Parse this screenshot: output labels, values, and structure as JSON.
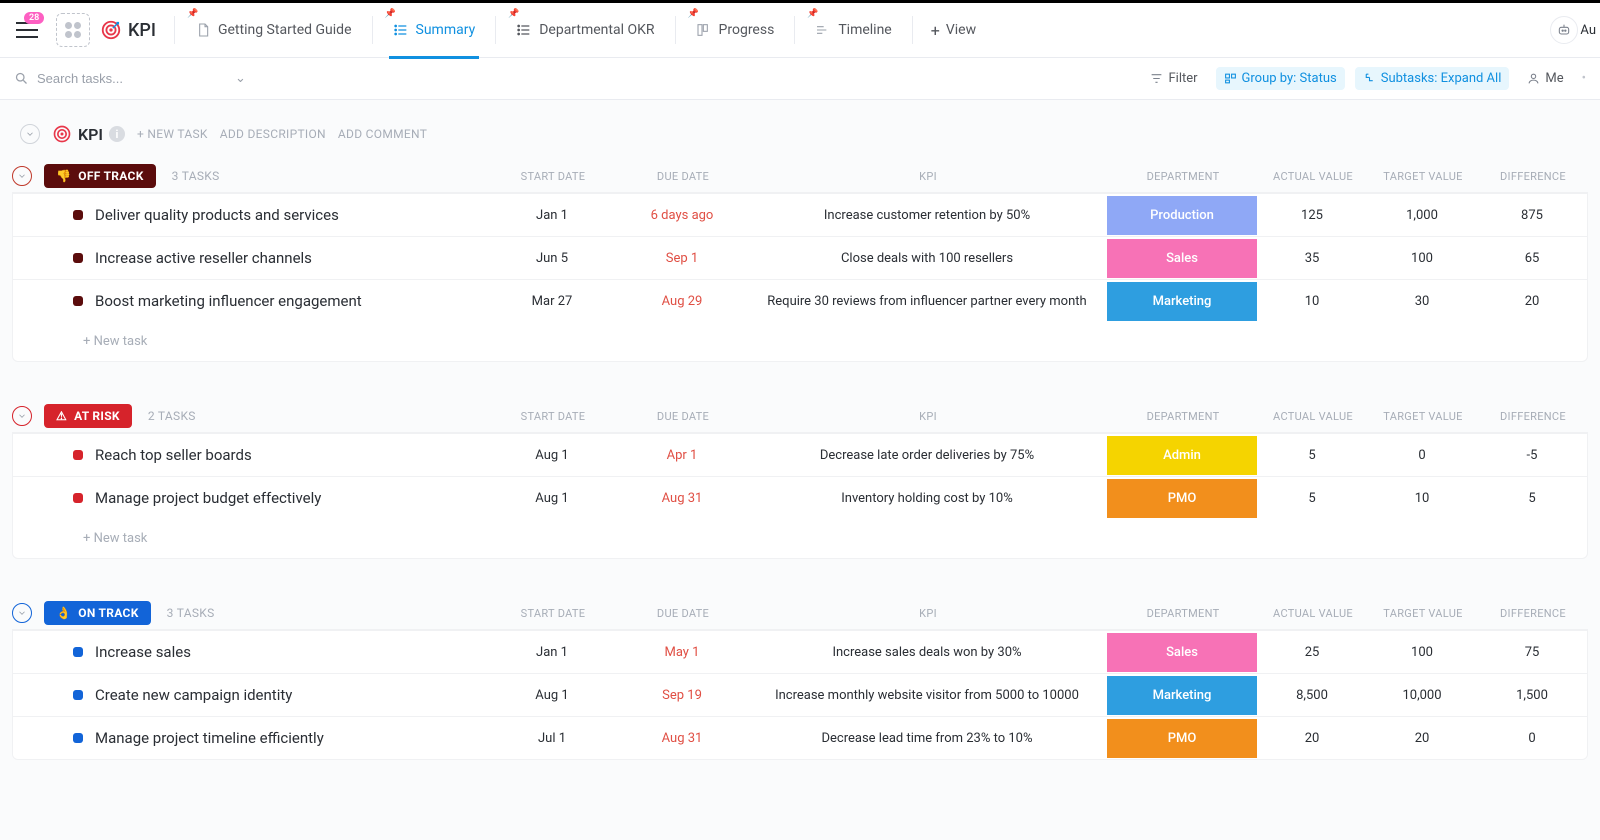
{
  "notif_count": "28",
  "page_title": "KPI",
  "nav": [
    {
      "label": "Getting Started Guide",
      "icon": "doc"
    },
    {
      "label": "Summary",
      "icon": "list",
      "active": true
    },
    {
      "label": "Departmental OKR",
      "icon": "list"
    },
    {
      "label": "Progress",
      "icon": "board"
    },
    {
      "label": "Timeline",
      "icon": "timeline"
    }
  ],
  "add_view_label": "View",
  "au_label": "Au",
  "search_placeholder": "Search tasks...",
  "toolbar": {
    "filter": "Filter",
    "group_by": "Group by: Status",
    "subtasks": "Subtasks: Expand All",
    "me": "Me"
  },
  "section": {
    "title": "KPI",
    "new_task": "+ NEW TASK",
    "add_desc": "ADD DESCRIPTION",
    "add_comment": "ADD COMMENT"
  },
  "column_labels": {
    "start": "START DATE",
    "due": "DUE DATE",
    "kpi": "KPI",
    "dept": "DEPARTMENT",
    "actual": "ACTUAL VALUE",
    "target": "TARGET VALUE",
    "diff": "DIFFERENCE"
  },
  "new_task_label": "+ New task",
  "dept_colors": {
    "Production": "#8fa8f6",
    "Sales": "#f772b6",
    "Marketing": "#2e9ee0",
    "Admin": "#f5d400",
    "PMO": "#f28f1c"
  },
  "groups": [
    {
      "name": "OFF TRACK",
      "icon": "👎",
      "chip_bg": "#5b0c0c",
      "collapse_color": "#c0392b",
      "count": "3 TASKS",
      "dot": "#5b0c0c",
      "rows": [
        {
          "name": "Deliver quality products and services",
          "start": "Jan 1",
          "due": "6 days ago",
          "kpi": "Increase customer retention by 50%",
          "dept": "Production",
          "actual": "125",
          "target": "1,000",
          "diff": "875"
        },
        {
          "name": "Increase active reseller channels",
          "start": "Jun 5",
          "due": "Sep 1",
          "kpi": "Close deals with 100 resellers",
          "dept": "Sales",
          "actual": "35",
          "target": "100",
          "diff": "65"
        },
        {
          "name": "Boost marketing influencer engagement",
          "start": "Mar 27",
          "due": "Aug 29",
          "kpi": "Require 30 reviews from influencer partner every month",
          "dept": "Marketing",
          "actual": "10",
          "target": "30",
          "diff": "20"
        }
      ]
    },
    {
      "name": "AT RISK",
      "icon": "⚠",
      "chip_bg": "#d6232b",
      "collapse_color": "#d6232b",
      "count": "2 TASKS",
      "dot": "#d6232b",
      "rows": [
        {
          "name": "Reach top seller boards",
          "start": "Aug 1",
          "due": "Apr 1",
          "kpi": "Decrease late order deliveries by 75%",
          "dept": "Admin",
          "actual": "5",
          "target": "0",
          "diff": "-5"
        },
        {
          "name": "Manage project budget effectively",
          "start": "Aug 1",
          "due": "Aug 31",
          "kpi": "Inventory holding cost by 10%",
          "dept": "PMO",
          "actual": "5",
          "target": "10",
          "diff": "5"
        }
      ]
    },
    {
      "name": "ON TRACK",
      "icon": "👌",
      "chip_bg": "#1264d8",
      "collapse_color": "#1264d8",
      "count": "3 TASKS",
      "dot": "#1264d8",
      "rows": [
        {
          "name": "Increase sales",
          "start": "Jan 1",
          "due": "May 1",
          "kpi": "Increase sales deals won by 30%",
          "dept": "Sales",
          "actual": "25",
          "target": "100",
          "diff": "75"
        },
        {
          "name": "Create new campaign identity",
          "start": "Aug 1",
          "due": "Sep 19",
          "kpi": "Increase monthly website visitor from 5000 to 10000",
          "dept": "Marketing",
          "actual": "8,500",
          "target": "10,000",
          "diff": "1,500"
        },
        {
          "name": "Manage project timeline efficiently",
          "start": "Jul 1",
          "due": "Aug 31",
          "kpi": "Decrease lead time from 23% to 10%",
          "dept": "PMO",
          "actual": "20",
          "target": "20",
          "diff": "0"
        }
      ]
    }
  ]
}
